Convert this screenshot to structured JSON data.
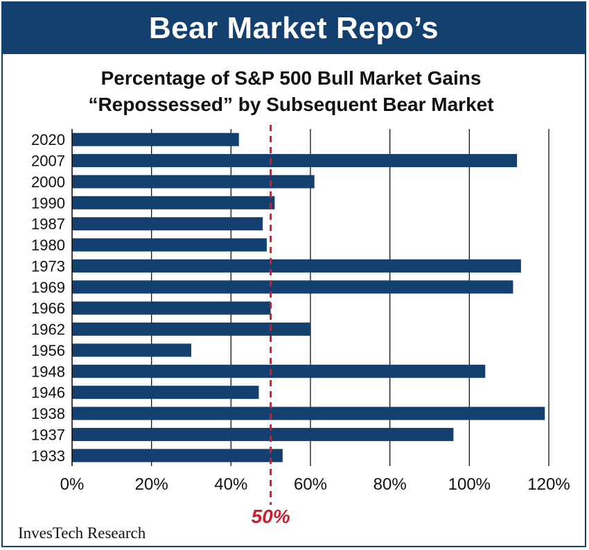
{
  "banner": {
    "title": "Bear Market Repo’s"
  },
  "source": "InvesTech Research",
  "colors": {
    "bar": "#14406f",
    "reference_line": "#c8202f",
    "banner": "#14406f"
  },
  "chart_data": {
    "type": "bar",
    "orientation": "horizontal",
    "title_lines": [
      "Percentage of S&P 500 Bull Market Gains",
      "“Repossessed” by Subsequent Bear Market"
    ],
    "categories": [
      "2020",
      "2007",
      "2000",
      "1990",
      "1987",
      "1980",
      "1973",
      "1969",
      "1966",
      "1962",
      "1956",
      "1948",
      "1946",
      "1938",
      "1937",
      "1933"
    ],
    "values": [
      42,
      112,
      61,
      51,
      48,
      49,
      113,
      111,
      50,
      60,
      30,
      104,
      47,
      119,
      96,
      53
    ],
    "unit": "%",
    "xlim": [
      0,
      120
    ],
    "xticks": [
      0,
      20,
      40,
      60,
      80,
      100,
      120
    ],
    "xtick_labels": [
      "0%",
      "20%",
      "40%",
      "60%",
      "80%",
      "100%",
      "120%"
    ],
    "grid": "vertical",
    "reference_line": {
      "value": 50,
      "label": "50%",
      "style": "dashed"
    }
  }
}
